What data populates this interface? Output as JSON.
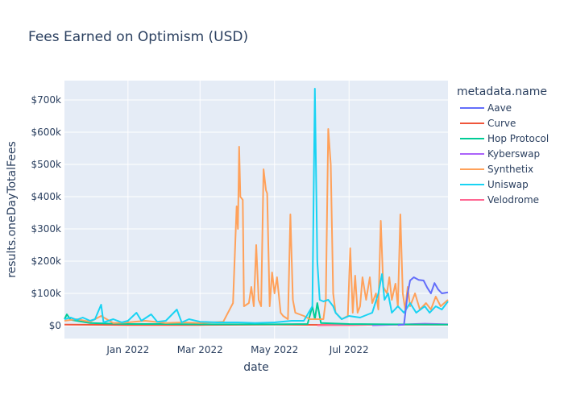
{
  "chart_data": {
    "type": "line",
    "title": "Fees Earned on Optimism (USD)",
    "xlabel": "date",
    "ylabel": "results.oneDayTotalFees",
    "legend_title": "metadata.name",
    "legend_position": "right",
    "grid": true,
    "x_range": [
      "2021-11-10",
      "2022-09-20"
    ],
    "ylim": [
      -40000,
      760000
    ],
    "x_ticks": [
      {
        "date": "2022-01-01",
        "label": "Jan 2022"
      },
      {
        "date": "2022-03-01",
        "label": "Mar 2022"
      },
      {
        "date": "2022-05-01",
        "label": "May 2022"
      },
      {
        "date": "2022-07-01",
        "label": "Jul 2022"
      }
    ],
    "y_ticks": [
      {
        "value": 0,
        "label": "$0"
      },
      {
        "value": 100000,
        "label": "$100k"
      },
      {
        "value": 200000,
        "label": "$200k"
      },
      {
        "value": 300000,
        "label": "$300k"
      },
      {
        "value": 400000,
        "label": "$400k"
      },
      {
        "value": 500000,
        "label": "$500k"
      },
      {
        "value": 600000,
        "label": "$600k"
      },
      {
        "value": 700000,
        "label": "$700k"
      }
    ],
    "series": [
      {
        "name": "Aave",
        "color": "#636efa",
        "points": [
          [
            "2022-08-10",
            2000
          ],
          [
            "2022-08-15",
            3000
          ],
          [
            "2022-08-18",
            100000
          ],
          [
            "2022-08-20",
            140000
          ],
          [
            "2022-08-23",
            150000
          ],
          [
            "2022-08-27",
            142000
          ],
          [
            "2022-08-31",
            140000
          ],
          [
            "2022-09-03",
            118000
          ],
          [
            "2022-09-06",
            100000
          ],
          [
            "2022-09-09",
            132000
          ],
          [
            "2022-09-12",
            112000
          ],
          [
            "2022-09-15",
            100000
          ],
          [
            "2022-09-20",
            103000
          ]
        ]
      },
      {
        "name": "Curve",
        "color": "#ef553b",
        "points": [
          [
            "2021-11-10",
            3000
          ],
          [
            "2022-01-01",
            2000
          ],
          [
            "2022-03-01",
            2000
          ],
          [
            "2022-05-01",
            3000
          ],
          [
            "2022-07-01",
            2000
          ],
          [
            "2022-08-01",
            3000
          ],
          [
            "2022-09-20",
            3000
          ]
        ]
      },
      {
        "name": "Hop Protocol",
        "color": "#00cc96",
        "points": [
          [
            "2021-11-10",
            20000
          ],
          [
            "2021-11-12",
            35000
          ],
          [
            "2021-11-15",
            18000
          ],
          [
            "2021-11-20",
            15000
          ],
          [
            "2021-12-01",
            8000
          ],
          [
            "2022-01-01",
            5000
          ],
          [
            "2022-02-01",
            5000
          ],
          [
            "2022-03-01",
            4000
          ],
          [
            "2022-04-01",
            4000
          ],
          [
            "2022-05-01",
            4000
          ],
          [
            "2022-05-28",
            5000
          ],
          [
            "2022-06-01",
            60000
          ],
          [
            "2022-06-03",
            20000
          ],
          [
            "2022-06-05",
            70000
          ],
          [
            "2022-06-08",
            8000
          ],
          [
            "2022-07-01",
            5000
          ],
          [
            "2022-08-01",
            4000
          ],
          [
            "2022-09-20",
            3000
          ]
        ]
      },
      {
        "name": "Kyberswap",
        "color": "#ab63fa",
        "points": [
          [
            "2022-07-20",
            1000
          ],
          [
            "2022-08-10",
            3000
          ],
          [
            "2022-09-01",
            6000
          ],
          [
            "2022-09-20",
            4000
          ]
        ]
      },
      {
        "name": "Synthetix",
        "color": "#ffa15a",
        "points": [
          [
            "2021-11-10",
            15000
          ],
          [
            "2021-11-20",
            20000
          ],
          [
            "2021-12-01",
            12000
          ],
          [
            "2021-12-10",
            30000
          ],
          [
            "2021-12-20",
            8000
          ],
          [
            "2022-01-01",
            10000
          ],
          [
            "2022-01-15",
            15000
          ],
          [
            "2022-02-01",
            8000
          ],
          [
            "2022-02-15",
            10000
          ],
          [
            "2022-03-01",
            8000
          ],
          [
            "2022-03-10",
            10000
          ],
          [
            "2022-03-20",
            12000
          ],
          [
            "2022-03-28",
            70000
          ],
          [
            "2022-03-31",
            370000
          ],
          [
            "2022-04-01",
            300000
          ],
          [
            "2022-04-02",
            555000
          ],
          [
            "2022-04-03",
            400000
          ],
          [
            "2022-04-05",
            390000
          ],
          [
            "2022-04-06",
            60000
          ],
          [
            "2022-04-10",
            70000
          ],
          [
            "2022-04-12",
            120000
          ],
          [
            "2022-04-14",
            60000
          ],
          [
            "2022-04-16",
            250000
          ],
          [
            "2022-04-18",
            80000
          ],
          [
            "2022-04-20",
            60000
          ],
          [
            "2022-04-22",
            485000
          ],
          [
            "2022-04-24",
            420000
          ],
          [
            "2022-04-25",
            410000
          ],
          [
            "2022-04-27",
            60000
          ],
          [
            "2022-04-29",
            165000
          ],
          [
            "2022-05-01",
            100000
          ],
          [
            "2022-05-03",
            150000
          ],
          [
            "2022-05-06",
            40000
          ],
          [
            "2022-05-08",
            30000
          ],
          [
            "2022-05-12",
            20000
          ],
          [
            "2022-05-14",
            345000
          ],
          [
            "2022-05-16",
            80000
          ],
          [
            "2022-05-18",
            40000
          ],
          [
            "2022-05-25",
            30000
          ],
          [
            "2022-05-30",
            20000
          ],
          [
            "2022-06-05",
            20000
          ],
          [
            "2022-06-10",
            20000
          ],
          [
            "2022-06-12",
            80000
          ],
          [
            "2022-06-14",
            610000
          ],
          [
            "2022-06-16",
            500000
          ],
          [
            "2022-06-18",
            100000
          ],
          [
            "2022-06-20",
            40000
          ],
          [
            "2022-06-25",
            20000
          ],
          [
            "2022-06-30",
            30000
          ],
          [
            "2022-07-02",
            240000
          ],
          [
            "2022-07-04",
            40000
          ],
          [
            "2022-07-06",
            155000
          ],
          [
            "2022-07-08",
            40000
          ],
          [
            "2022-07-10",
            60000
          ],
          [
            "2022-07-12",
            150000
          ],
          [
            "2022-07-15",
            80000
          ],
          [
            "2022-07-18",
            150000
          ],
          [
            "2022-07-20",
            70000
          ],
          [
            "2022-07-23",
            100000
          ],
          [
            "2022-07-25",
            50000
          ],
          [
            "2022-07-27",
            325000
          ],
          [
            "2022-07-29",
            120000
          ],
          [
            "2022-08-01",
            100000
          ],
          [
            "2022-08-03",
            150000
          ],
          [
            "2022-08-05",
            80000
          ],
          [
            "2022-08-08",
            130000
          ],
          [
            "2022-08-10",
            60000
          ],
          [
            "2022-08-12",
            345000
          ],
          [
            "2022-08-14",
            100000
          ],
          [
            "2022-08-16",
            50000
          ],
          [
            "2022-08-18",
            120000
          ],
          [
            "2022-08-20",
            60000
          ],
          [
            "2022-08-24",
            100000
          ],
          [
            "2022-08-28",
            50000
          ],
          [
            "2022-09-02",
            70000
          ],
          [
            "2022-09-06",
            50000
          ],
          [
            "2022-09-10",
            90000
          ],
          [
            "2022-09-14",
            60000
          ],
          [
            "2022-09-20",
            80000
          ]
        ]
      },
      {
        "name": "Uniswap",
        "color": "#19d3f3",
        "points": [
          [
            "2021-11-10",
            20000
          ],
          [
            "2021-11-15",
            25000
          ],
          [
            "2021-11-20",
            18000
          ],
          [
            "2021-11-25",
            25000
          ],
          [
            "2021-12-01",
            15000
          ],
          [
            "2021-12-05",
            20000
          ],
          [
            "2021-12-10",
            65000
          ],
          [
            "2021-12-12",
            10000
          ],
          [
            "2021-12-20",
            20000
          ],
          [
            "2021-12-27",
            10000
          ],
          [
            "2022-01-01",
            15000
          ],
          [
            "2022-01-08",
            40000
          ],
          [
            "2022-01-12",
            15000
          ],
          [
            "2022-01-20",
            35000
          ],
          [
            "2022-01-25",
            12000
          ],
          [
            "2022-02-01",
            15000
          ],
          [
            "2022-02-10",
            50000
          ],
          [
            "2022-02-14",
            10000
          ],
          [
            "2022-02-20",
            20000
          ],
          [
            "2022-03-01",
            12000
          ],
          [
            "2022-03-15",
            10000
          ],
          [
            "2022-04-01",
            10000
          ],
          [
            "2022-04-15",
            8000
          ],
          [
            "2022-05-01",
            10000
          ],
          [
            "2022-05-15",
            15000
          ],
          [
            "2022-05-25",
            15000
          ],
          [
            "2022-06-01",
            60000
          ],
          [
            "2022-06-03",
            735000
          ],
          [
            "2022-06-05",
            200000
          ],
          [
            "2022-06-07",
            80000
          ],
          [
            "2022-06-10",
            75000
          ],
          [
            "2022-06-14",
            80000
          ],
          [
            "2022-06-18",
            60000
          ],
          [
            "2022-06-20",
            40000
          ],
          [
            "2022-06-25",
            20000
          ],
          [
            "2022-07-01",
            30000
          ],
          [
            "2022-07-10",
            25000
          ],
          [
            "2022-07-20",
            40000
          ],
          [
            "2022-07-25",
            100000
          ],
          [
            "2022-07-28",
            160000
          ],
          [
            "2022-07-30",
            80000
          ],
          [
            "2022-08-02",
            100000
          ],
          [
            "2022-08-05",
            40000
          ],
          [
            "2022-08-10",
            60000
          ],
          [
            "2022-08-15",
            40000
          ],
          [
            "2022-08-20",
            70000
          ],
          [
            "2022-08-25",
            40000
          ],
          [
            "2022-09-01",
            60000
          ],
          [
            "2022-09-05",
            40000
          ],
          [
            "2022-09-10",
            60000
          ],
          [
            "2022-09-15",
            50000
          ],
          [
            "2022-09-20",
            75000
          ]
        ]
      },
      {
        "name": "Velodrome",
        "color": "#ff6692",
        "points": [
          [
            "2022-06-05",
            1000
          ],
          [
            "2022-07-01",
            2000
          ],
          [
            "2022-08-01",
            3000
          ],
          [
            "2022-09-20",
            3000
          ]
        ]
      }
    ]
  }
}
